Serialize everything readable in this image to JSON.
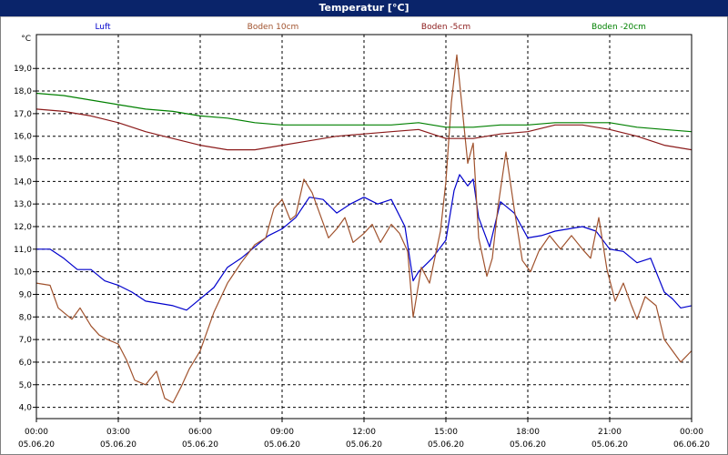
{
  "window": {
    "title": "Temperatur [°C]"
  },
  "chart_data": {
    "type": "line",
    "title": "Temperatur [°C]",
    "ylabel": "°C",
    "ylim": [
      3.5,
      20.5
    ],
    "yticks": [
      "4,0",
      "5,0",
      "6,0",
      "7,0",
      "8,0",
      "9,0",
      "10,0",
      "11,0",
      "12,0",
      "13,0",
      "14,0",
      "15,0",
      "16,0",
      "17,0",
      "18,0",
      "19,0"
    ],
    "xlim": [
      0,
      24
    ],
    "xticks": [
      {
        "time": "00:00",
        "date": "05.06.20"
      },
      {
        "time": "03:00",
        "date": "05.06.20"
      },
      {
        "time": "06:00",
        "date": "05.06.20"
      },
      {
        "time": "09:00",
        "date": "05.06.20"
      },
      {
        "time": "12:00",
        "date": "05.06.20"
      },
      {
        "time": "15:00",
        "date": "05.06.20"
      },
      {
        "time": "18:00",
        "date": "05.06.20"
      },
      {
        "time": "21:00",
        "date": "05.06.20"
      },
      {
        "time": "00:00",
        "date": "06.06.20"
      }
    ],
    "grid": true,
    "legend_position": "top",
    "series": [
      {
        "name": "Luft",
        "color": "#0000cc",
        "points": [
          [
            0,
            11.0
          ],
          [
            0.5,
            11.0
          ],
          [
            1,
            10.6
          ],
          [
            1.5,
            10.1
          ],
          [
            2,
            10.1
          ],
          [
            2.5,
            9.6
          ],
          [
            3,
            9.4
          ],
          [
            3.5,
            9.1
          ],
          [
            4,
            8.7
          ],
          [
            4.5,
            8.6
          ],
          [
            5,
            8.5
          ],
          [
            5.5,
            8.3
          ],
          [
            6,
            8.8
          ],
          [
            6.5,
            9.3
          ],
          [
            7,
            10.2
          ],
          [
            7.5,
            10.6
          ],
          [
            8,
            11.1
          ],
          [
            8.5,
            11.6
          ],
          [
            9,
            11.9
          ],
          [
            9.5,
            12.4
          ],
          [
            10,
            13.3
          ],
          [
            10.5,
            13.2
          ],
          [
            11,
            12.6
          ],
          [
            11.5,
            13.0
          ],
          [
            12,
            13.3
          ],
          [
            12.5,
            13.0
          ],
          [
            13,
            13.2
          ],
          [
            13.5,
            12.0
          ],
          [
            13.8,
            9.6
          ],
          [
            14,
            10.0
          ],
          [
            14.5,
            10.6
          ],
          [
            15,
            11.4
          ],
          [
            15.3,
            13.6
          ],
          [
            15.5,
            14.3
          ],
          [
            15.8,
            13.8
          ],
          [
            16,
            14.1
          ],
          [
            16.2,
            12.4
          ],
          [
            16.6,
            11.1
          ],
          [
            17,
            13.1
          ],
          [
            17.5,
            12.6
          ],
          [
            18,
            11.5
          ],
          [
            18.5,
            11.6
          ],
          [
            19,
            11.8
          ],
          [
            19.5,
            11.9
          ],
          [
            20,
            12.0
          ],
          [
            20.5,
            11.8
          ],
          [
            21,
            11.0
          ],
          [
            21.5,
            10.9
          ],
          [
            22,
            10.4
          ],
          [
            22.5,
            10.6
          ],
          [
            23,
            9.1
          ],
          [
            23.3,
            8.8
          ],
          [
            23.6,
            8.4
          ],
          [
            24,
            8.5
          ]
        ]
      },
      {
        "name": "Boden 10cm",
        "color": "#a0522d",
        "points": [
          [
            0,
            9.5
          ],
          [
            0.5,
            9.4
          ],
          [
            0.8,
            8.4
          ],
          [
            1.3,
            7.9
          ],
          [
            1.6,
            8.4
          ],
          [
            2,
            7.6
          ],
          [
            2.3,
            7.2
          ],
          [
            2.6,
            7.0
          ],
          [
            3,
            6.8
          ],
          [
            3.3,
            6.1
          ],
          [
            3.6,
            5.2
          ],
          [
            4,
            5.0
          ],
          [
            4.4,
            5.6
          ],
          [
            4.7,
            4.4
          ],
          [
            5,
            4.2
          ],
          [
            5.3,
            4.9
          ],
          [
            5.6,
            5.7
          ],
          [
            6,
            6.5
          ],
          [
            6.5,
            8.2
          ],
          [
            7,
            9.5
          ],
          [
            7.5,
            10.4
          ],
          [
            8,
            11.2
          ],
          [
            8.4,
            11.5
          ],
          [
            8.7,
            12.8
          ],
          [
            9,
            13.2
          ],
          [
            9.3,
            12.3
          ],
          [
            9.5,
            12.5
          ],
          [
            9.8,
            14.1
          ],
          [
            10.1,
            13.5
          ],
          [
            10.4,
            12.5
          ],
          [
            10.7,
            11.5
          ],
          [
            11,
            11.9
          ],
          [
            11.3,
            12.4
          ],
          [
            11.6,
            11.3
          ],
          [
            12,
            11.7
          ],
          [
            12.3,
            12.1
          ],
          [
            12.6,
            11.3
          ],
          [
            13,
            12.1
          ],
          [
            13.3,
            11.7
          ],
          [
            13.6,
            10.9
          ],
          [
            13.8,
            8.0
          ],
          [
            14.1,
            10.2
          ],
          [
            14.4,
            9.5
          ],
          [
            14.8,
            11.8
          ],
          [
            15.0,
            14.0
          ],
          [
            15.2,
            17.5
          ],
          [
            15.4,
            19.6
          ],
          [
            15.6,
            17.2
          ],
          [
            15.8,
            14.8
          ],
          [
            16,
            15.7
          ],
          [
            16.2,
            11.5
          ],
          [
            16.5,
            9.8
          ],
          [
            16.7,
            10.6
          ],
          [
            16.9,
            12.8
          ],
          [
            17.2,
            15.3
          ],
          [
            17.5,
            12.8
          ],
          [
            17.8,
            10.5
          ],
          [
            18.1,
            10.0
          ],
          [
            18.4,
            10.9
          ],
          [
            18.8,
            11.6
          ],
          [
            19.2,
            11.0
          ],
          [
            19.6,
            11.6
          ],
          [
            20,
            11.0
          ],
          [
            20.3,
            10.6
          ],
          [
            20.6,
            12.4
          ],
          [
            20.9,
            10.1
          ],
          [
            21.2,
            8.7
          ],
          [
            21.5,
            9.5
          ],
          [
            21.8,
            8.5
          ],
          [
            22,
            7.9
          ],
          [
            22.3,
            8.9
          ],
          [
            22.7,
            8.5
          ],
          [
            23,
            7.0
          ],
          [
            23.3,
            6.5
          ],
          [
            23.6,
            6.0
          ],
          [
            24,
            6.5
          ]
        ]
      },
      {
        "name": "Boden -5cm",
        "color": "#8b1a1a",
        "points": [
          [
            0,
            17.2
          ],
          [
            1,
            17.1
          ],
          [
            2,
            16.9
          ],
          [
            3,
            16.6
          ],
          [
            4,
            16.2
          ],
          [
            5,
            15.9
          ],
          [
            6,
            15.6
          ],
          [
            7,
            15.4
          ],
          [
            8,
            15.4
          ],
          [
            9,
            15.6
          ],
          [
            10,
            15.8
          ],
          [
            11,
            16.0
          ],
          [
            12,
            16.1
          ],
          [
            13,
            16.2
          ],
          [
            14,
            16.3
          ],
          [
            15,
            15.9
          ],
          [
            16,
            15.9
          ],
          [
            17,
            16.1
          ],
          [
            18,
            16.2
          ],
          [
            19,
            16.5
          ],
          [
            20,
            16.5
          ],
          [
            21,
            16.3
          ],
          [
            22,
            16.0
          ],
          [
            23,
            15.6
          ],
          [
            24,
            15.4
          ]
        ]
      },
      {
        "name": "Boden -20cm",
        "color": "#008000",
        "points": [
          [
            0,
            17.9
          ],
          [
            1,
            17.8
          ],
          [
            2,
            17.6
          ],
          [
            3,
            17.4
          ],
          [
            4,
            17.2
          ],
          [
            5,
            17.1
          ],
          [
            6,
            16.9
          ],
          [
            7,
            16.8
          ],
          [
            8,
            16.6
          ],
          [
            9,
            16.5
          ],
          [
            10,
            16.5
          ],
          [
            11,
            16.5
          ],
          [
            12,
            16.5
          ],
          [
            13,
            16.5
          ],
          [
            14,
            16.6
          ],
          [
            15,
            16.4
          ],
          [
            16,
            16.4
          ],
          [
            17,
            16.5
          ],
          [
            18,
            16.5
          ],
          [
            19,
            16.6
          ],
          [
            20,
            16.6
          ],
          [
            21,
            16.6
          ],
          [
            22,
            16.4
          ],
          [
            23,
            16.3
          ],
          [
            24,
            16.2
          ]
        ]
      }
    ]
  }
}
